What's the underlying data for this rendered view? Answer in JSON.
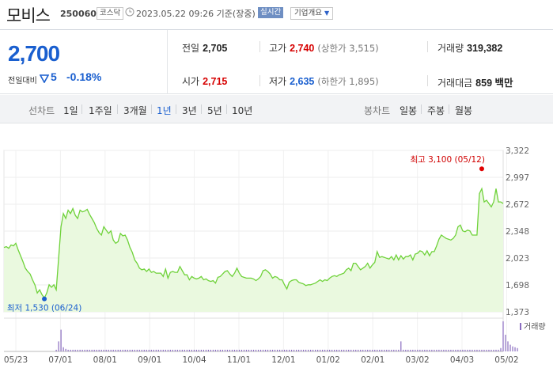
{
  "stock": {
    "name": "모비스",
    "code": "250060",
    "market": "코스닥",
    "datetime": "2023.05.22 09:26 기준(장중)",
    "realtime_label": "실시간",
    "company_info_label": "기업개요"
  },
  "quote": {
    "price": "2,700",
    "compare_label": "전일대비",
    "change": "5",
    "change_rate": "-0.18%",
    "prev_close_label": "전일",
    "prev_close": "2,705",
    "high_label": "고가",
    "high": "2,740",
    "upper_limit": "(상한가 3,515)",
    "volume_label": "거래량",
    "volume": "319,382",
    "open_label": "시가",
    "open": "2,715",
    "low_label": "저가",
    "low": "2,635",
    "lower_limit": "(하한가 1,895)",
    "value_label": "거래대금",
    "value": "859 백만"
  },
  "periods": {
    "line_title": "선차트",
    "line_options": [
      "1일",
      "1주일",
      "3개월",
      "1년",
      "3년",
      "5년",
      "10년"
    ],
    "active": "1년",
    "candle_title": "봉차트",
    "candle_options": [
      "일봉",
      "주봉",
      "월봉"
    ]
  },
  "colors": {
    "price_down": "#1a5fcf",
    "price_up": "#d60000",
    "line": "#6fd23a",
    "area": "#eaf9df",
    "volume": "#8a6cc0"
  },
  "chart_data": {
    "type": "area",
    "period": "1년",
    "ylim": [
      1373,
      3322
    ],
    "y_ticks": [
      "3,322",
      "2,997",
      "2,672",
      "2,348",
      "2,023",
      "1,698",
      "1,373"
    ],
    "x_ticks": [
      "05/23",
      "07/01",
      "08/01",
      "09/01",
      "10/04",
      "11/01",
      "12/01",
      "01/02",
      "02/01",
      "03/02",
      "04/03",
      "05/02"
    ],
    "high_annotation": "최고 3,100 (05/12)",
    "low_annotation": "최저 1,530 (06/24)",
    "volume_legend": "거래량",
    "price_series": [
      2150,
      2160,
      2140,
      2180,
      2170,
      2200,
      2120,
      2050,
      1980,
      1900,
      1860,
      1830,
      1760,
      1700,
      1600,
      1640,
      1580,
      1540,
      1600,
      1700,
      1670,
      1700,
      1640,
      2020,
      2400,
      2560,
      2500,
      2600,
      2560,
      2620,
      2540,
      2500,
      2600,
      2580,
      2590,
      2610,
      2550,
      2500,
      2450,
      2380,
      2330,
      2300,
      2400,
      2360,
      2320,
      2350,
      2240,
      2200,
      2220,
      2320,
      2290,
      2300,
      2240,
      2150,
      2090,
      2000,
      1960,
      1900,
      1880,
      1890,
      1860,
      1890,
      1850,
      1860,
      1840,
      1840,
      1840,
      1800,
      1890,
      1780,
      1850,
      1860,
      1850,
      1850,
      1920,
      1870,
      1820,
      1820,
      1760,
      1800,
      1780,
      1770,
      1780,
      1800,
      1760,
      1770,
      1750,
      1740,
      1750,
      1720,
      1790,
      1800,
      1830,
      1860,
      1870,
      1830,
      1800,
      1840,
      1900,
      1840,
      1800,
      1790,
      1780,
      1780,
      1780,
      1770,
      1750,
      1770,
      1800,
      1870,
      1880,
      1860,
      1830,
      1780,
      1800,
      1790,
      1760,
      1760,
      1700,
      1650,
      1730,
      1750,
      1760,
      1760,
      1730,
      1720,
      1710,
      1690,
      1700,
      1700,
      1710,
      1720,
      1740,
      1760,
      1740,
      1760,
      1750,
      1780,
      1800,
      1810,
      1800,
      1820,
      1830,
      1840,
      1880,
      1900,
      1870,
      1960,
      1960,
      1920,
      1880,
      1900,
      1920,
      1960,
      1900,
      1940,
      1970,
      2100,
      2030,
      2040,
      2030,
      2020,
      2010,
      2040,
      2000,
      2060,
      2000,
      2050,
      2010,
      2040,
      2040,
      2060,
      2000,
      2070,
      2080,
      2110,
      2100,
      2060,
      2110,
      2050,
      2100,
      2100,
      2170,
      2250,
      2300,
      2280,
      2260,
      2250,
      2240,
      2260,
      2300,
      2400,
      2420,
      2350,
      2340,
      2360,
      2350,
      2300,
      2300,
      2300,
      2800,
      2860,
      2700,
      2720,
      2680,
      2640,
      2700,
      2860,
      2700,
      2700,
      2680
    ],
    "volume_series": [
      0,
      0,
      0,
      0,
      0,
      0,
      0,
      0,
      0,
      0,
      0,
      0,
      0,
      0,
      0,
      0,
      0,
      0,
      0,
      0,
      0,
      0,
      2,
      12,
      26,
      5,
      3,
      2,
      2,
      2,
      2,
      2,
      2,
      2,
      2,
      2,
      2,
      2,
      2,
      2,
      2,
      2,
      2,
      2,
      2,
      2,
      2,
      2,
      2,
      2,
      2,
      2,
      2,
      2,
      2,
      2,
      2,
      2,
      2,
      2,
      2,
      2,
      2,
      2,
      2,
      2,
      2,
      2,
      2,
      2,
      2,
      2,
      2,
      2,
      2,
      2,
      2,
      2,
      2,
      2,
      2,
      2,
      2,
      2,
      2,
      2,
      2,
      2,
      2,
      2,
      2,
      2,
      2,
      2,
      2,
      2,
      2,
      2,
      2,
      2,
      2,
      2,
      2,
      2,
      2,
      2,
      2,
      2,
      2,
      2,
      2,
      2,
      2,
      2,
      2,
      2,
      2,
      2,
      2,
      2,
      2,
      2,
      2,
      2,
      2,
      2,
      2,
      2,
      2,
      2,
      2,
      2,
      2,
      2,
      2,
      2,
      2,
      2,
      2,
      2,
      2,
      2,
      2,
      2,
      2,
      2,
      2,
      2,
      2,
      2,
      2,
      2,
      2,
      2,
      2,
      2,
      2,
      2,
      2,
      2,
      2,
      2,
      2,
      2,
      2,
      2,
      2,
      12,
      2,
      2,
      2,
      2,
      2,
      2,
      2,
      2,
      2,
      2,
      2,
      2,
      2,
      2,
      2,
      2,
      2,
      2,
      2,
      2,
      2,
      2,
      2,
      2,
      2,
      2,
      2,
      2,
      2,
      2,
      2,
      2,
      2,
      2,
      2,
      2,
      2,
      2,
      2,
      2,
      2,
      4,
      36,
      20,
      12,
      8,
      6,
      5,
      4
    ]
  }
}
